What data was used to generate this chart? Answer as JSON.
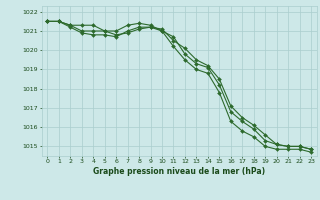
{
  "x": [
    0,
    1,
    2,
    3,
    4,
    5,
    6,
    7,
    8,
    9,
    10,
    11,
    12,
    13,
    14,
    15,
    16,
    17,
    18,
    19,
    20,
    21,
    22,
    23
  ],
  "line1": [
    1021.5,
    1021.5,
    1021.3,
    1021.3,
    1021.3,
    1021.0,
    1021.0,
    1021.3,
    1021.4,
    1021.3,
    1021.0,
    1020.7,
    1019.8,
    1019.3,
    1019.1,
    1018.2,
    1016.8,
    1016.3,
    1015.9,
    1015.3,
    1015.1,
    1015.0,
    1015.0,
    1014.85
  ],
  "line2": [
    1021.5,
    1021.5,
    1021.3,
    1021.0,
    1021.0,
    1021.0,
    1020.8,
    1020.9,
    1021.1,
    1021.2,
    1021.1,
    1020.5,
    1020.1,
    1019.5,
    1019.2,
    1018.5,
    1017.1,
    1016.5,
    1016.1,
    1015.6,
    1015.1,
    1015.0,
    1015.0,
    1014.85
  ],
  "line3": [
    1021.5,
    1021.5,
    1021.2,
    1020.9,
    1020.8,
    1020.8,
    1020.7,
    1021.0,
    1021.2,
    1021.2,
    1021.0,
    1020.2,
    1019.5,
    1019.0,
    1018.8,
    1017.8,
    1016.3,
    1015.8,
    1015.5,
    1015.0,
    1014.85,
    1014.85,
    1014.85,
    1014.7
  ],
  "line_color": "#2d6a2d",
  "marker": "D",
  "bg_color": "#cde8e8",
  "grid_color": "#aacece",
  "xlabel": "Graphe pression niveau de la mer (hPa)",
  "xlabel_color": "#1a4a1a",
  "tick_color": "#1a4a1a",
  "ylim": [
    1014.5,
    1022.3
  ],
  "yticks": [
    1015,
    1016,
    1017,
    1018,
    1019,
    1020,
    1021,
    1022
  ],
  "xticks": [
    0,
    1,
    2,
    3,
    4,
    5,
    6,
    7,
    8,
    9,
    10,
    11,
    12,
    13,
    14,
    15,
    16,
    17,
    18,
    19,
    20,
    21,
    22,
    23
  ]
}
